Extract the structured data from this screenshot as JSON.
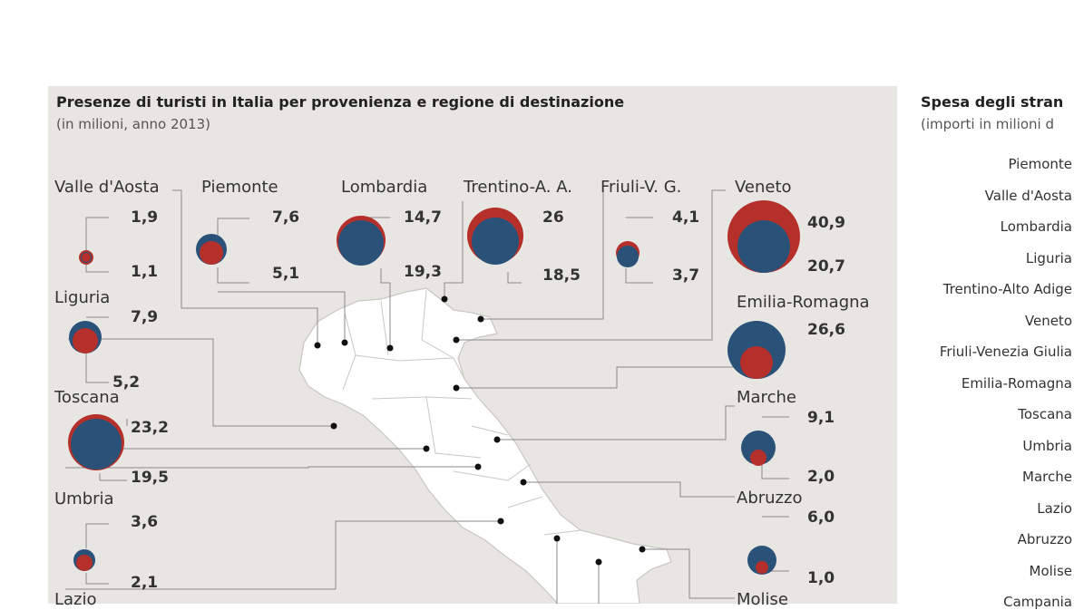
{
  "main": {
    "title": "Presenze di turisti in Italia per provenienza e regione di destinazione",
    "subtitle": "(in milioni, anno 2013)",
    "colors": {
      "red": "#b5302b",
      "blue": "#2a5178",
      "panel": "#e8e6e3",
      "land": "#ffffff"
    },
    "regions": [
      {
        "name": "Valle d'Aosta",
        "top": "1,9",
        "bottom": "1,1"
      },
      {
        "name": "Piemonte",
        "top": "7,6",
        "bottom": "5,1"
      },
      {
        "name": "Lombardia",
        "top": "14,7",
        "bottom": "19,3"
      },
      {
        "name": "Trentino-A. A.",
        "top": "26",
        "bottom": "18,5"
      },
      {
        "name": "Friuli-V. G.",
        "top": "4,1",
        "bottom": "3,7"
      },
      {
        "name": "Veneto",
        "top": "40,9",
        "bottom": "20,7"
      },
      {
        "name": "Liguria",
        "top": "7,9",
        "bottom": "5,2"
      },
      {
        "name": "Emilia-Romagna",
        "top": "26,6",
        "bottom": ""
      },
      {
        "name": "Toscana",
        "top": "23,2",
        "bottom": "19,5"
      },
      {
        "name": "Marche",
        "top": "9,1",
        "bottom": "2,0"
      },
      {
        "name": "Umbria",
        "top": "3,6",
        "bottom": "2,1"
      },
      {
        "name": "Abruzzo",
        "top": "6,0",
        "bottom": "1,0"
      },
      {
        "name": "Lazio",
        "top": "",
        "bottom": ""
      },
      {
        "name": "Molise",
        "top": "",
        "bottom": ""
      }
    ]
  },
  "side": {
    "title": "Spesa degli stran",
    "subtitle": "(importi in milioni d",
    "items": [
      "Piemonte",
      "Valle d'Aosta",
      "Lombardia",
      "Liguria",
      "Trentino-Alto Adige",
      "Veneto",
      "Friuli-Venezia Giulia",
      "Emilia-Romagna",
      "Toscana",
      "Umbria",
      "Marche",
      "Lazio",
      "Abruzzo",
      "Molise",
      "Campania"
    ]
  }
}
